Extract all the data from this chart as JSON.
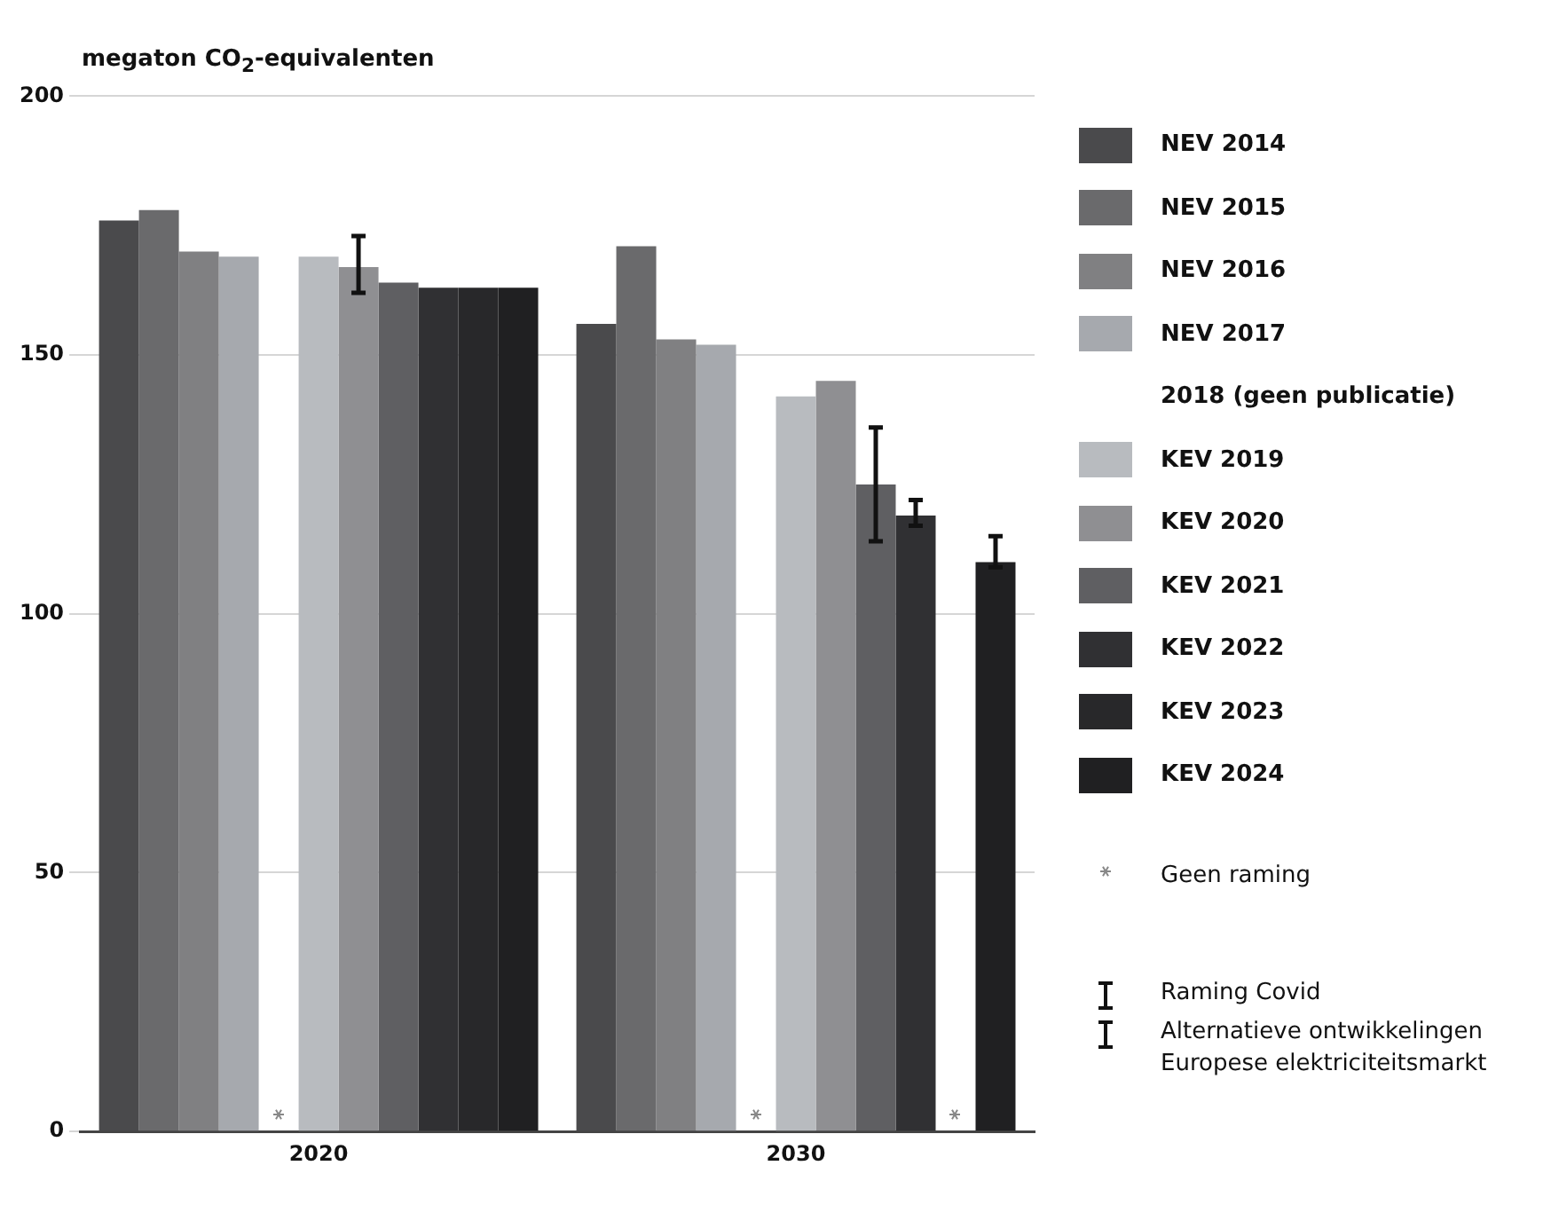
{
  "chart_data": {
    "type": "bar",
    "ylabel": "megaton CO$_{2}$-equivalenten",
    "categories": [
      "2020",
      "2030"
    ],
    "series": [
      {
        "name": "NEV 2014",
        "color": "#4a4a4c",
        "values": [
          176,
          156
        ]
      },
      {
        "name": "NEV 2015",
        "color": "#6a6a6c",
        "values": [
          178,
          171
        ]
      },
      {
        "name": "NEV 2016",
        "color": "#808082",
        "values": [
          170,
          153
        ]
      },
      {
        "name": "NEV 2017",
        "color": "#a6a9ae",
        "values": [
          169,
          152
        ]
      },
      {
        "name": "2018 (geen publicatie)",
        "values": [
          null,
          null
        ]
      },
      {
        "name": "KEV 2019",
        "color": "#b8bbbf",
        "values": [
          169,
          142
        ]
      },
      {
        "name": "KEV 2020",
        "color": "#8f8f92",
        "values": [
          167,
          145
        ],
        "errors": [
          [
            162,
            173
          ],
          null
        ]
      },
      {
        "name": "KEV 2021",
        "color": "#5f5f62",
        "values": [
          164,
          125
        ],
        "errors": [
          null,
          [
            114,
            136
          ]
        ]
      },
      {
        "name": "KEV 2022",
        "color": "#303033",
        "values": [
          163,
          119
        ],
        "errors": [
          null,
          [
            117,
            122
          ]
        ]
      },
      {
        "name": "KEV 2023",
        "color": "#28282a",
        "values": [
          163,
          null
        ]
      },
      {
        "name": "KEV 2024",
        "color": "#202022",
        "values": [
          163,
          110
        ],
        "errors": [
          null,
          [
            109,
            115
          ]
        ]
      }
    ],
    "ylim": [
      0,
      200
    ],
    "yticks": [
      0,
      50,
      100,
      150,
      200
    ],
    "grid": "y",
    "legend": "right",
    "annotations": [
      "Geen raming",
      "Raming Covid",
      "Alternatieve ontwikkelingen Europese elektriciteitsmarkt"
    ]
  }
}
